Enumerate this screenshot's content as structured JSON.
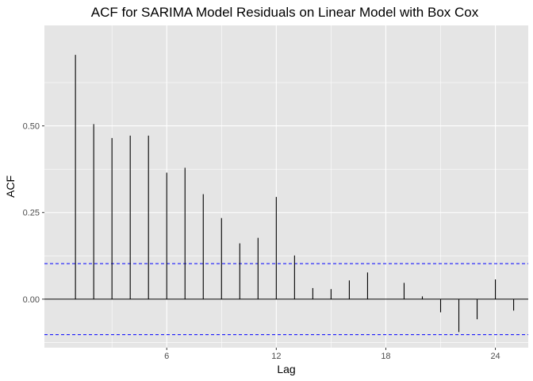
{
  "chart_data": {
    "type": "bar",
    "subtype": "acf-stem",
    "title": "ACF for SARIMA Model Residuals on Linear Model with Box Cox",
    "xlabel": "Lag",
    "ylabel": "ACF",
    "x": [
      1,
      2,
      3,
      4,
      5,
      6,
      7,
      8,
      9,
      10,
      11,
      12,
      13,
      14,
      15,
      16,
      17,
      18,
      19,
      20,
      21,
      22,
      23,
      24,
      25
    ],
    "values": [
      0.705,
      0.505,
      0.465,
      0.472,
      0.472,
      0.365,
      0.379,
      0.303,
      0.234,
      0.161,
      0.177,
      0.295,
      0.126,
      0.032,
      0.029,
      0.054,
      0.077,
      0.0,
      0.047,
      0.008,
      -0.038,
      -0.095,
      -0.058,
      0.057,
      -0.033
    ],
    "confidence_limit": 0.1025,
    "xlim": [
      -0.7,
      25.8
    ],
    "ylim": [
      -0.14,
      0.79
    ],
    "xticks": [
      6,
      12,
      18,
      24
    ],
    "yticks": [
      0.0,
      0.25,
      0.5
    ],
    "ytick_labels": [
      "0.00",
      "0.25",
      "0.50"
    ],
    "grid": true,
    "colors": {
      "panel": "#e5e5e5",
      "grid": "#ffffff",
      "stems": "#000000",
      "confidence_lines": "#0000ff"
    }
  }
}
